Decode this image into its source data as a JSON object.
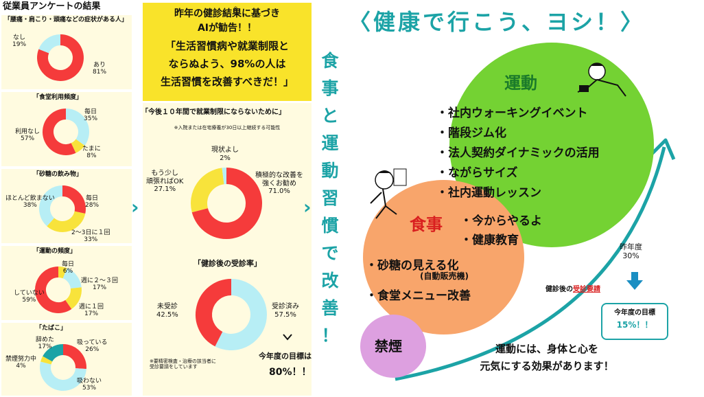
{
  "survey": {
    "title": "従業員アンケートの結果",
    "charts": [
      {
        "title": "「腰痛・肩こり・頭痛などの症状がある人」",
        "labels": [
          {
            "name": "なし",
            "pct": "19%"
          },
          {
            "name": "あり",
            "pct": "81%"
          }
        ]
      },
      {
        "title": "「食堂利用頻度」",
        "labels": [
          {
            "name": "毎日",
            "pct": "35%"
          },
          {
            "name": "利用なし",
            "pct": "57%"
          },
          {
            "name": "たまに",
            "pct": "8%"
          }
        ]
      },
      {
        "title": "「砂糖の飲み物」",
        "labels": [
          {
            "name": "ほとんど飲まない",
            "pct": "38%"
          },
          {
            "name": "毎日",
            "pct": "28%"
          },
          {
            "name": "2～3日に１回",
            "pct": "33%"
          }
        ]
      },
      {
        "title": "「運動の頻度」",
        "labels": [
          {
            "name": "毎日",
            "pct": "6%"
          },
          {
            "name": "週に２～３回",
            "pct": "17%"
          },
          {
            "name": "していない",
            "pct": "59%"
          },
          {
            "name": "週に１回",
            "pct": "17%"
          }
        ]
      },
      {
        "title": "「たばこ」",
        "labels": [
          {
            "name": "辞めた",
            "pct": "17%"
          },
          {
            "name": "吸っている",
            "pct": "26%"
          },
          {
            "name": "禁煙努力中",
            "pct": "4%"
          },
          {
            "name": "吸わない",
            "pct": "53%"
          }
        ]
      }
    ]
  },
  "ai": {
    "line1": "昨年の健診結果に基づき",
    "line2": "AIが勧告！！",
    "line3": "「生活習慣病や就業制限と",
    "line4": "ならぬよう、98%の人は",
    "line5": "生活習慣を改善すべきだ！」",
    "note_mark": "※",
    "chart1_title": "「今後１０年間で就業制限にならないために」",
    "chart1_note": "※入院または在宅療養が30日以上継続する可能性",
    "chart1_labels": [
      {
        "name": "現状よし",
        "pct": "2%"
      },
      {
        "name": "もう少し\n頑張ればOK",
        "pct": "27.1%"
      },
      {
        "name": "積極的な改善を\n強くお勧め",
        "pct": "71.0%"
      }
    ],
    "chart2_title": "「健診後の受診率」",
    "chart2_labels": [
      {
        "name": "未受診",
        "pct": "42.5%"
      },
      {
        "name": "受診済み",
        "pct": "57.5%"
      }
    ],
    "chart2_note": "※要精密検査・治療の該当者に\n受診要請をしています",
    "goal_label": "今年度の目標は",
    "goal_value": "80%！！"
  },
  "vertical_text": [
    "食",
    "事",
    "と",
    "運",
    "動",
    "習",
    "慣",
    "で",
    "改",
    "善",
    "！"
  ],
  "arrows": [
    "›",
    "›"
  ],
  "headline": "〈健康で行こう、ヨシ！〉",
  "exercise": {
    "title": "運動",
    "items": [
      "・社内ウォーキングイベント",
      "・階段ジム化",
      "・法人契約ダイナミックの活用",
      "・ながらサイズ",
      "・社内運動レッスン"
    ]
  },
  "food": {
    "title": "食事",
    "items_right": [
      "・今からやるよ",
      "・健康教育"
    ],
    "item1": "・砂糖の見える化",
    "item1_sub": "(自動販売機)",
    "item2": "・食堂メニュー改善"
  },
  "smoke": {
    "title": "禁煙"
  },
  "rate": {
    "prev_label": "昨年度",
    "prev_value": "30%",
    "caption_prefix": "健診後の",
    "caption_highlight": "受診要請",
    "goal_label": "今年度の目標",
    "goal_value": "15%！！"
  },
  "footer": {
    "line1": "運動には、身体と心を",
    "line2": "元気にする効果があります！"
  },
  "colors": {
    "red": "#f53b3b",
    "cyan": "#b7eef5",
    "yellow": "#f8e33b",
    "teal": "#1ca3a6",
    "green": "#74d233",
    "orange": "#f8a56b",
    "purple": "#dda0e0",
    "panel": "#fffbe0"
  },
  "chart_data": [
    {
      "type": "pie",
      "title": "「腰痛・肩こり・頭痛などの症状がある人」",
      "categories": [
        "あり",
        "なし"
      ],
      "values": [
        81,
        19
      ]
    },
    {
      "type": "pie",
      "title": "「食堂利用頻度」",
      "categories": [
        "毎日",
        "たまに",
        "利用なし"
      ],
      "values": [
        35,
        8,
        57
      ]
    },
    {
      "type": "pie",
      "title": "「砂糖の飲み物」",
      "categories": [
        "毎日",
        "2～3日に１回",
        "ほとんど飲まない"
      ],
      "values": [
        28,
        33,
        38
      ]
    },
    {
      "type": "pie",
      "title": "「運動の頻度」",
      "categories": [
        "毎日",
        "週に２～３回",
        "週に１回",
        "していない"
      ],
      "values": [
        6,
        17,
        17,
        59
      ]
    },
    {
      "type": "pie",
      "title": "「たばこ」",
      "categories": [
        "吸っている",
        "吸わない",
        "禁煙努力中",
        "辞めた"
      ],
      "values": [
        26,
        53,
        4,
        17
      ]
    },
    {
      "type": "pie",
      "title": "「今後１０年間で就業制限にならないために」",
      "categories": [
        "積極的な改善を強くお勧め",
        "もう少し頑張ればOK",
        "現状よし"
      ],
      "values": [
        71.0,
        27.1,
        2
      ]
    },
    {
      "type": "pie",
      "title": "「健診後の受診率」",
      "categories": [
        "受診済み",
        "未受診"
      ],
      "values": [
        57.5,
        42.5
      ]
    }
  ]
}
